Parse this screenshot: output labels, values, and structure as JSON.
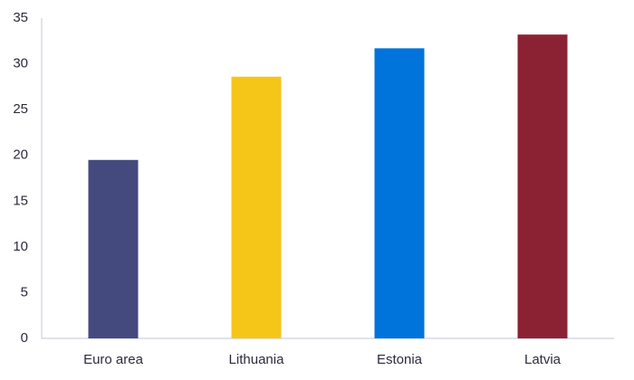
{
  "chart_data": {
    "type": "bar",
    "categories": [
      "Euro area",
      "Lithuania",
      "Estonia",
      "Latvia"
    ],
    "values": [
      19.5,
      28.6,
      31.7,
      33.2
    ],
    "colors": [
      "#454a7e",
      "#f5c518",
      "#0074db",
      "#8b2234"
    ],
    "ylim": [
      0,
      35
    ],
    "yticks": [
      0,
      5,
      10,
      15,
      20,
      25,
      30,
      35
    ],
    "grid": false
  }
}
